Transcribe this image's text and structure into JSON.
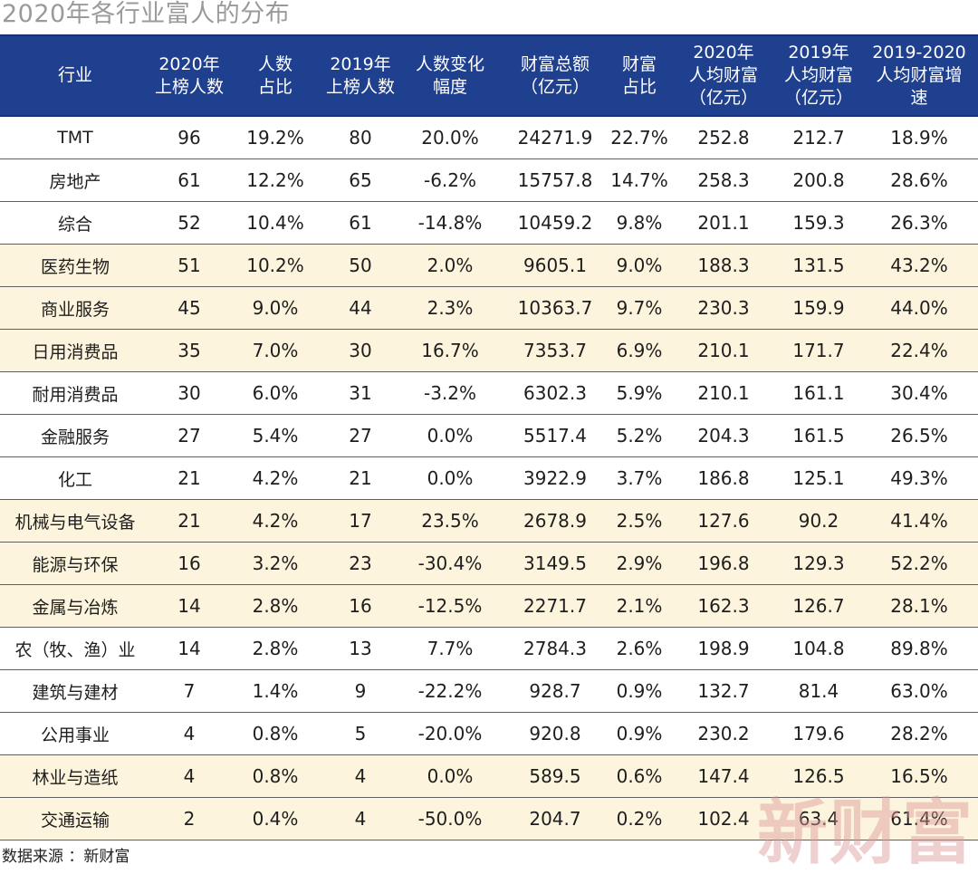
{
  "title": "2020年各行业富人的分布",
  "headers": [
    [
      "行业"
    ],
    [
      "2020年",
      "上榜人数"
    ],
    [
      "人数",
      "占比"
    ],
    [
      "2019年",
      "上榜人数"
    ],
    [
      "人数变化",
      "幅度"
    ],
    [
      "财富总额",
      "（亿元）"
    ],
    [
      "财富",
      "占比"
    ],
    [
      "2020年",
      "人均财富",
      "（亿元）"
    ],
    [
      "2019年",
      "人均财富",
      "（亿元）"
    ],
    [
      "2019-2020",
      "人均财富增",
      "速"
    ]
  ],
  "rows": [
    [
      "TMT",
      "96",
      "19.2%",
      "80",
      "20.0%",
      "24271.9",
      "22.7%",
      "252.8",
      "212.7",
      "18.9%"
    ],
    [
      "房地产",
      "61",
      "12.2%",
      "65",
      "-6.2%",
      "15757.8",
      "14.7%",
      "258.3",
      "200.8",
      "28.6%"
    ],
    [
      "综合",
      "52",
      "10.4%",
      "61",
      "-14.8%",
      "10459.2",
      "9.8%",
      "201.1",
      "159.3",
      "26.3%"
    ],
    [
      "医药生物",
      "51",
      "10.2%",
      "50",
      "2.0%",
      "9605.1",
      "9.0%",
      "188.3",
      "131.5",
      "43.2%"
    ],
    [
      "商业服务",
      "45",
      "9.0%",
      "44",
      "2.3%",
      "10363.7",
      "9.7%",
      "230.3",
      "159.9",
      "44.0%"
    ],
    [
      "日用消费品",
      "35",
      "7.0%",
      "30",
      "16.7%",
      "7353.7",
      "6.9%",
      "210.1",
      "171.7",
      "22.4%"
    ],
    [
      "耐用消费品",
      "30",
      "6.0%",
      "31",
      "-3.2%",
      "6302.3",
      "5.9%",
      "210.1",
      "161.1",
      "30.4%"
    ],
    [
      "金融服务",
      "27",
      "5.4%",
      "27",
      "0.0%",
      "5517.4",
      "5.2%",
      "204.3",
      "161.5",
      "26.5%"
    ],
    [
      "化工",
      "21",
      "4.2%",
      "21",
      "0.0%",
      "3922.9",
      "3.7%",
      "186.8",
      "125.1",
      "49.3%"
    ],
    [
      "机械与电气设备",
      "21",
      "4.2%",
      "17",
      "23.5%",
      "2678.9",
      "2.5%",
      "127.6",
      "90.2",
      "41.4%"
    ],
    [
      "能源与环保",
      "16",
      "3.2%",
      "23",
      "-30.4%",
      "3149.5",
      "2.9%",
      "196.8",
      "129.3",
      "52.2%"
    ],
    [
      "金属与冶炼",
      "14",
      "2.8%",
      "16",
      "-12.5%",
      "2271.7",
      "2.1%",
      "162.3",
      "126.7",
      "28.1%"
    ],
    [
      "农（牧、渔）业",
      "14",
      "2.8%",
      "13",
      "7.7%",
      "2784.3",
      "2.6%",
      "198.9",
      "104.8",
      "89.8%"
    ],
    [
      "建筑与建材",
      "7",
      "1.4%",
      "9",
      "-22.2%",
      "928.7",
      "0.9%",
      "132.7",
      "81.4",
      "63.0%"
    ],
    [
      "公用事业",
      "4",
      "0.8%",
      "5",
      "-20.0%",
      "920.8",
      "0.9%",
      "230.2",
      "179.6",
      "28.2%"
    ],
    [
      "林业与造纸",
      "4",
      "0.8%",
      "4",
      "0.0%",
      "589.5",
      "0.6%",
      "147.4",
      "126.5",
      "16.5%"
    ],
    [
      "交通运输",
      "2",
      "0.4%",
      "4",
      "-50.0%",
      "204.7",
      "0.2%",
      "102.4",
      "63.4",
      "61.4%"
    ]
  ],
  "row_shading": [
    "white",
    "white",
    "white",
    "cream",
    "cream",
    "cream",
    "white",
    "white",
    "white",
    "cream",
    "cream",
    "cream",
    "white",
    "white",
    "white",
    "cream",
    "cream"
  ],
  "source": "数据来源 ：新财富",
  "watermark": "新财富",
  "colors": {
    "header_bg": "#1f3f8f",
    "header_text": "#ffffff",
    "cream_row": "#fcf4dc",
    "title_text": "#9a9a9a",
    "watermark": "#dc9696"
  }
}
